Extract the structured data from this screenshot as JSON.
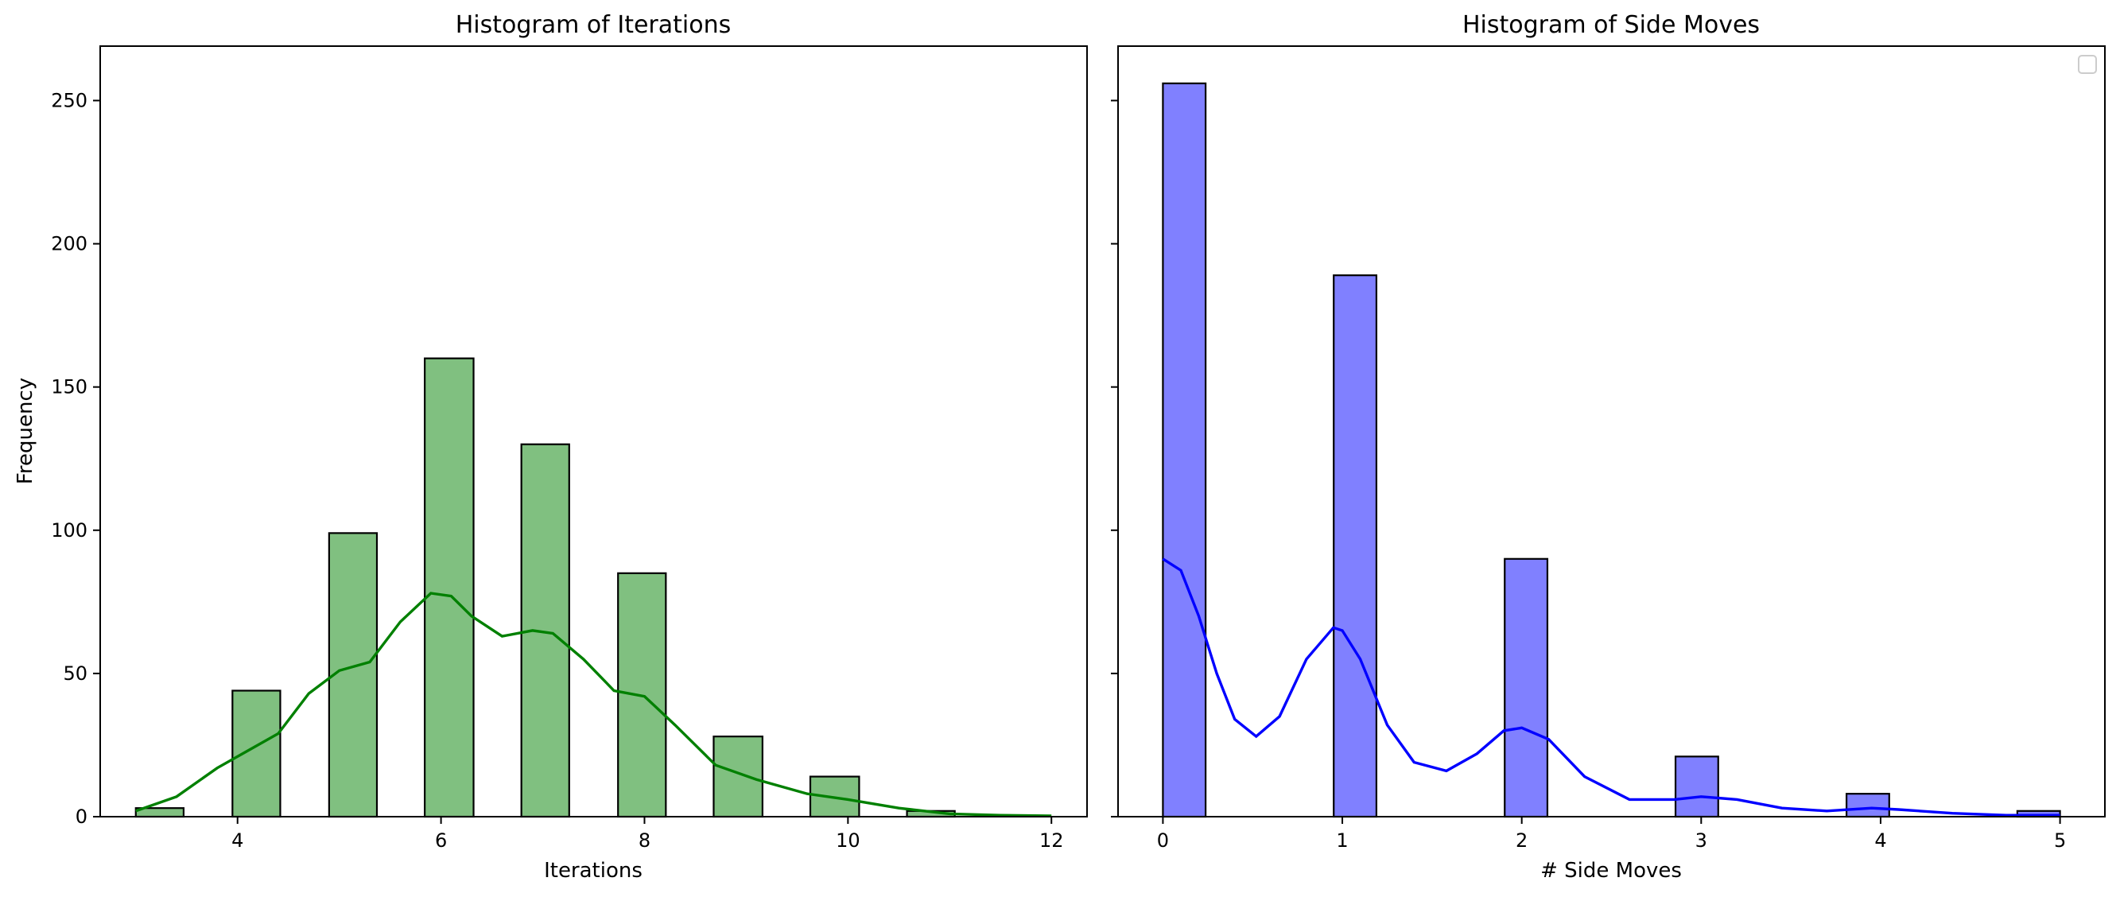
{
  "colors": {
    "iterations_bar": "#80c080",
    "iterations_kde": "#008000",
    "sidemoves_bar": "#8080ff",
    "sidemoves_kde": "#0000ff",
    "edge": "#000000"
  },
  "chart_data": [
    {
      "type": "bar",
      "title": "Histogram of Iterations",
      "xlabel": "Iterations",
      "ylabel": "Frequency",
      "xlim": [
        2.65,
        12.35
      ],
      "ylim": [
        0,
        269
      ],
      "xticks": [
        4,
        6,
        8,
        10,
        12
      ],
      "yticks": [
        0,
        50,
        100,
        150,
        200,
        250
      ],
      "bins": [
        {
          "x0": 3.0,
          "x1": 3.47,
          "value": 3
        },
        {
          "x0": 3.95,
          "x1": 4.42,
          "value": 44
        },
        {
          "x0": 4.9,
          "x1": 5.37,
          "value": 99
        },
        {
          "x0": 5.84,
          "x1": 6.32,
          "value": 160
        },
        {
          "x0": 6.79,
          "x1": 7.26,
          "value": 130
        },
        {
          "x0": 7.74,
          "x1": 8.21,
          "value": 85
        },
        {
          "x0": 8.68,
          "x1": 9.16,
          "value": 28
        },
        {
          "x0": 9.63,
          "x1": 10.11,
          "value": 14
        },
        {
          "x0": 10.58,
          "x1": 11.05,
          "value": 2
        }
      ],
      "kde": {
        "x": [
          3,
          3.4,
          3.8,
          4.1,
          4.4,
          4.7,
          5.0,
          5.3,
          5.6,
          5.9,
          6.1,
          6.3,
          6.6,
          6.9,
          7.1,
          7.4,
          7.7,
          8.0,
          8.3,
          8.7,
          9.1,
          9.6,
          10.0,
          10.5,
          11.0,
          11.5,
          12.0
        ],
        "y": [
          2,
          7,
          17,
          23,
          29,
          43,
          51,
          54,
          68,
          78,
          77,
          70,
          63,
          65,
          64,
          55,
          44,
          42,
          32,
          18,
          13,
          8,
          6,
          3,
          1,
          0.5,
          0.3
        ]
      },
      "grid": false,
      "legend": false
    },
    {
      "type": "bar",
      "title": "Histogram of Side Moves",
      "xlabel": "# Side Moves",
      "ylabel": "",
      "xlim": [
        -0.25,
        5.25
      ],
      "ylim": [
        0,
        269
      ],
      "xticks": [
        0,
        1,
        2,
        3,
        4,
        5
      ],
      "yticks": [
        0,
        50,
        100,
        150,
        200,
        250
      ],
      "bins": [
        {
          "x0": 0.0,
          "x1": 0.238,
          "value": 256
        },
        {
          "x0": 0.952,
          "x1": 1.19,
          "value": 189
        },
        {
          "x0": 1.905,
          "x1": 2.143,
          "value": 90
        },
        {
          "x0": 2.857,
          "x1": 3.095,
          "value": 21
        },
        {
          "x0": 3.81,
          "x1": 4.048,
          "value": 8
        },
        {
          "x0": 4.762,
          "x1": 5.0,
          "value": 2
        }
      ],
      "kde": {
        "x": [
          0,
          0.1,
          0.2,
          0.3,
          0.4,
          0.52,
          0.65,
          0.8,
          0.95,
          1.0,
          1.1,
          1.25,
          1.4,
          1.58,
          1.75,
          1.9,
          2.0,
          2.15,
          2.35,
          2.6,
          2.85,
          3.0,
          3.2,
          3.45,
          3.7,
          3.95,
          4.1,
          4.4,
          4.7,
          5.0
        ],
        "y": [
          90,
          86,
          70,
          50,
          34,
          28,
          35,
          55,
          66,
          65,
          55,
          32,
          19,
          16,
          22,
          30,
          31,
          27,
          14,
          6,
          6,
          7,
          6,
          3,
          2,
          3,
          2.5,
          1.2,
          0.5,
          0.5
        ]
      },
      "grid": false,
      "legend": true,
      "legend_position": "top-right"
    }
  ]
}
